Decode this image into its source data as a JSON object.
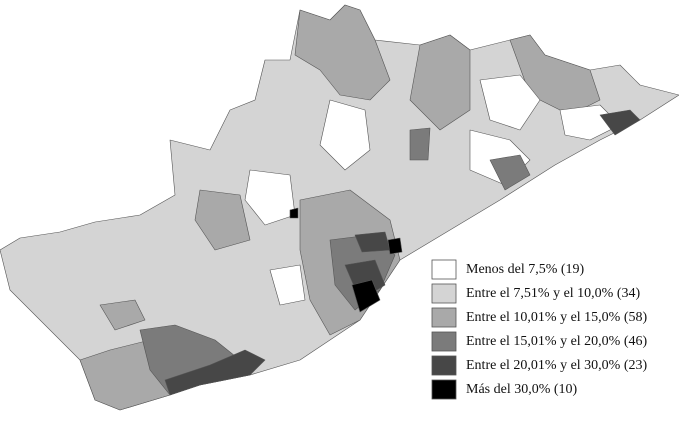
{
  "legend": {
    "items": [
      {
        "label": "Menos del 7,5% (19)",
        "color": "#ffffff"
      },
      {
        "label": "Entre el 7,51% y el 10,0% (34)",
        "color": "#d4d4d4"
      },
      {
        "label": "Entre el 10,01% y el 15,0% (58)",
        "color": "#a9a9a9"
      },
      {
        "label": "Entre el 15,01% y el 20,0% (46)",
        "color": "#7b7b7b"
      },
      {
        "label": "Entre el 20,01% y el 30,0% (23)",
        "color": "#474747"
      },
      {
        "label": "Más del 30,0% (10)",
        "color": "#000000"
      }
    ]
  }
}
